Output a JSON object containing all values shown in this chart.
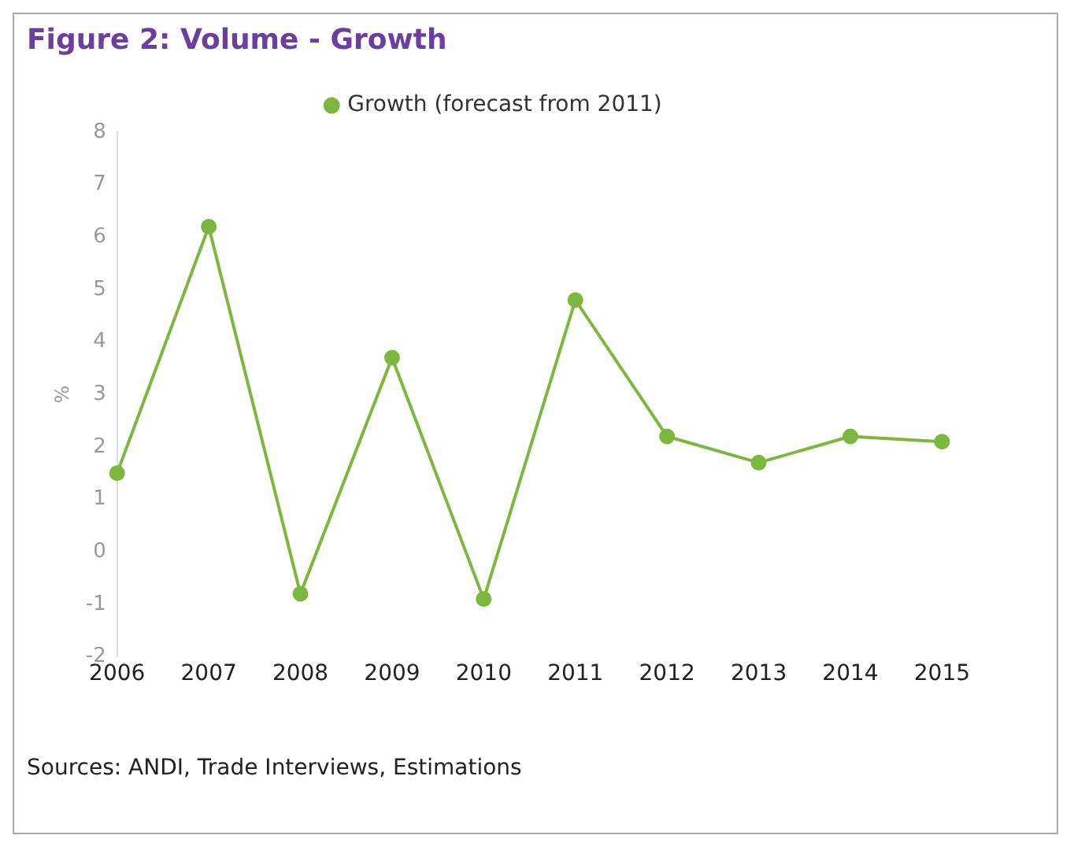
{
  "chart_data": {
    "type": "line",
    "title": "Figure 2: Volume - Growth",
    "ylabel": "%",
    "categories": [
      "2006",
      "2007",
      "2008",
      "2009",
      "2010",
      "2011",
      "2012",
      "2013",
      "2014",
      "2015"
    ],
    "series": [
      {
        "name": "Growth (forecast from 2011)",
        "color": "#7cb83e",
        "values": [
          1.5,
          6.2,
          -0.8,
          3.7,
          -0.9,
          4.8,
          2.2,
          1.7,
          2.2,
          2.1
        ]
      }
    ],
    "ylim": [
      -2,
      8
    ],
    "yticks": [
      -2,
      -1,
      0,
      1,
      2,
      3,
      4,
      5,
      6,
      7,
      8
    ],
    "grid": false,
    "legend": "top",
    "marker": "circle",
    "line_style": "solid",
    "annotations": [
      "Sources: ANDI, Trade Interviews, Estimations"
    ]
  }
}
